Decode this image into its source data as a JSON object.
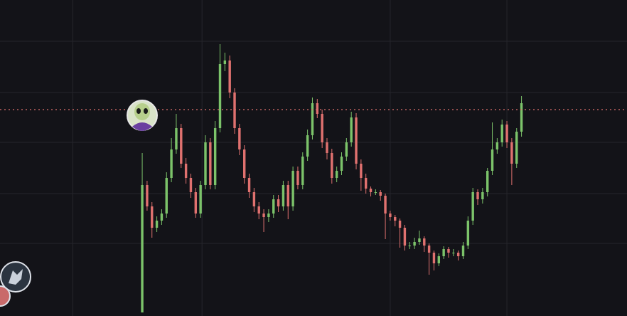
{
  "chart_data": {
    "type": "candlestick",
    "x": [
      0,
      1,
      2,
      3,
      4,
      5,
      6,
      7,
      8,
      9,
      10,
      11,
      12,
      13,
      14,
      15,
      16,
      17,
      18,
      19,
      20,
      21,
      22,
      23,
      24,
      25,
      26,
      27,
      28,
      29,
      30,
      31,
      32,
      33,
      34,
      35,
      36,
      37,
      38,
      39,
      40,
      41,
      42,
      43,
      44,
      45,
      46,
      47,
      48,
      49,
      50,
      51,
      52,
      53,
      54,
      55,
      56,
      57,
      58,
      59,
      60,
      61,
      62,
      63,
      64,
      65,
      66,
      67,
      68,
      69,
      70,
      71,
      72,
      73,
      74,
      75,
      76,
      77,
      78
    ],
    "open": [
      5,
      184,
      154,
      124,
      134,
      144,
      194,
      234,
      264,
      214,
      194,
      174,
      144,
      184,
      244,
      184,
      264,
      354,
      359,
      314,
      264,
      234,
      194,
      174,
      154,
      144,
      139,
      144,
      164,
      154,
      184,
      154,
      204,
      184,
      224,
      254,
      299,
      284,
      244,
      229,
      194,
      204,
      224,
      244,
      279,
      214,
      194,
      179,
      174,
      174,
      169,
      144,
      139,
      134,
      124,
      99,
      99,
      104,
      109,
      99,
      89,
      74,
      84,
      94,
      89,
      89,
      84,
      99,
      134,
      174,
      164,
      174,
      204,
      234,
      244,
      269,
      244,
      214,
      259
    ],
    "high": [
      229,
      190,
      160,
      140,
      150,
      202,
      250,
      284,
      270,
      222,
      200,
      180,
      190,
      254,
      250,
      274,
      382,
      370,
      366,
      320,
      270,
      240,
      200,
      180,
      160,
      150,
      150,
      170,
      170,
      190,
      190,
      210,
      210,
      230,
      262,
      307,
      305,
      290,
      250,
      235,
      210,
      230,
      250,
      287,
      285,
      220,
      200,
      182,
      178,
      177,
      172,
      148,
      142,
      137,
      128,
      104,
      110,
      120,
      112,
      102,
      92,
      88,
      98,
      97,
      94,
      92,
      104,
      140,
      180,
      178,
      180,
      208,
      272,
      250,
      276,
      274,
      250,
      264,
      309
    ],
    "low": [
      5,
      148,
      110,
      118,
      128,
      138,
      188,
      228,
      208,
      186,
      166,
      138,
      138,
      178,
      178,
      178,
      258,
      344,
      306,
      256,
      226,
      186,
      166,
      146,
      136,
      118,
      132,
      138,
      146,
      148,
      136,
      148,
      178,
      178,
      218,
      248,
      278,
      236,
      220,
      186,
      188,
      198,
      218,
      238,
      206,
      176,
      172,
      168,
      170,
      162,
      108,
      134,
      126,
      96,
      92,
      94,
      94,
      100,
      90,
      58,
      64,
      70,
      80,
      82,
      84,
      78,
      80,
      94,
      128,
      156,
      158,
      168,
      198,
      228,
      238,
      236,
      184,
      208,
      252
    ],
    "close": [
      184,
      154,
      124,
      134,
      144,
      194,
      234,
      264,
      214,
      194,
      174,
      144,
      184,
      244,
      184,
      264,
      354,
      359,
      314,
      264,
      234,
      194,
      174,
      154,
      144,
      139,
      144,
      164,
      154,
      184,
      154,
      204,
      184,
      224,
      254,
      299,
      284,
      244,
      229,
      194,
      204,
      224,
      244,
      279,
      214,
      194,
      179,
      174,
      174,
      169,
      144,
      139,
      134,
      124,
      99,
      99,
      104,
      109,
      99,
      89,
      74,
      84,
      94,
      89,
      89,
      84,
      99,
      134,
      174,
      164,
      174,
      204,
      234,
      244,
      269,
      244,
      214,
      259,
      299
    ],
    "up_color": "#7cc36a",
    "down_color": "#e0716f",
    "price_line": 290,
    "price_line_color": "#e0716f",
    "xlim": [
      -29.25,
      99.7
    ],
    "ylim": [
      0,
      444
    ],
    "xticks": [
      -14.3,
      12.3,
      51,
      75
    ],
    "yticks": [
      102,
      172,
      244,
      314,
      386
    ],
    "grid": true
  }
}
